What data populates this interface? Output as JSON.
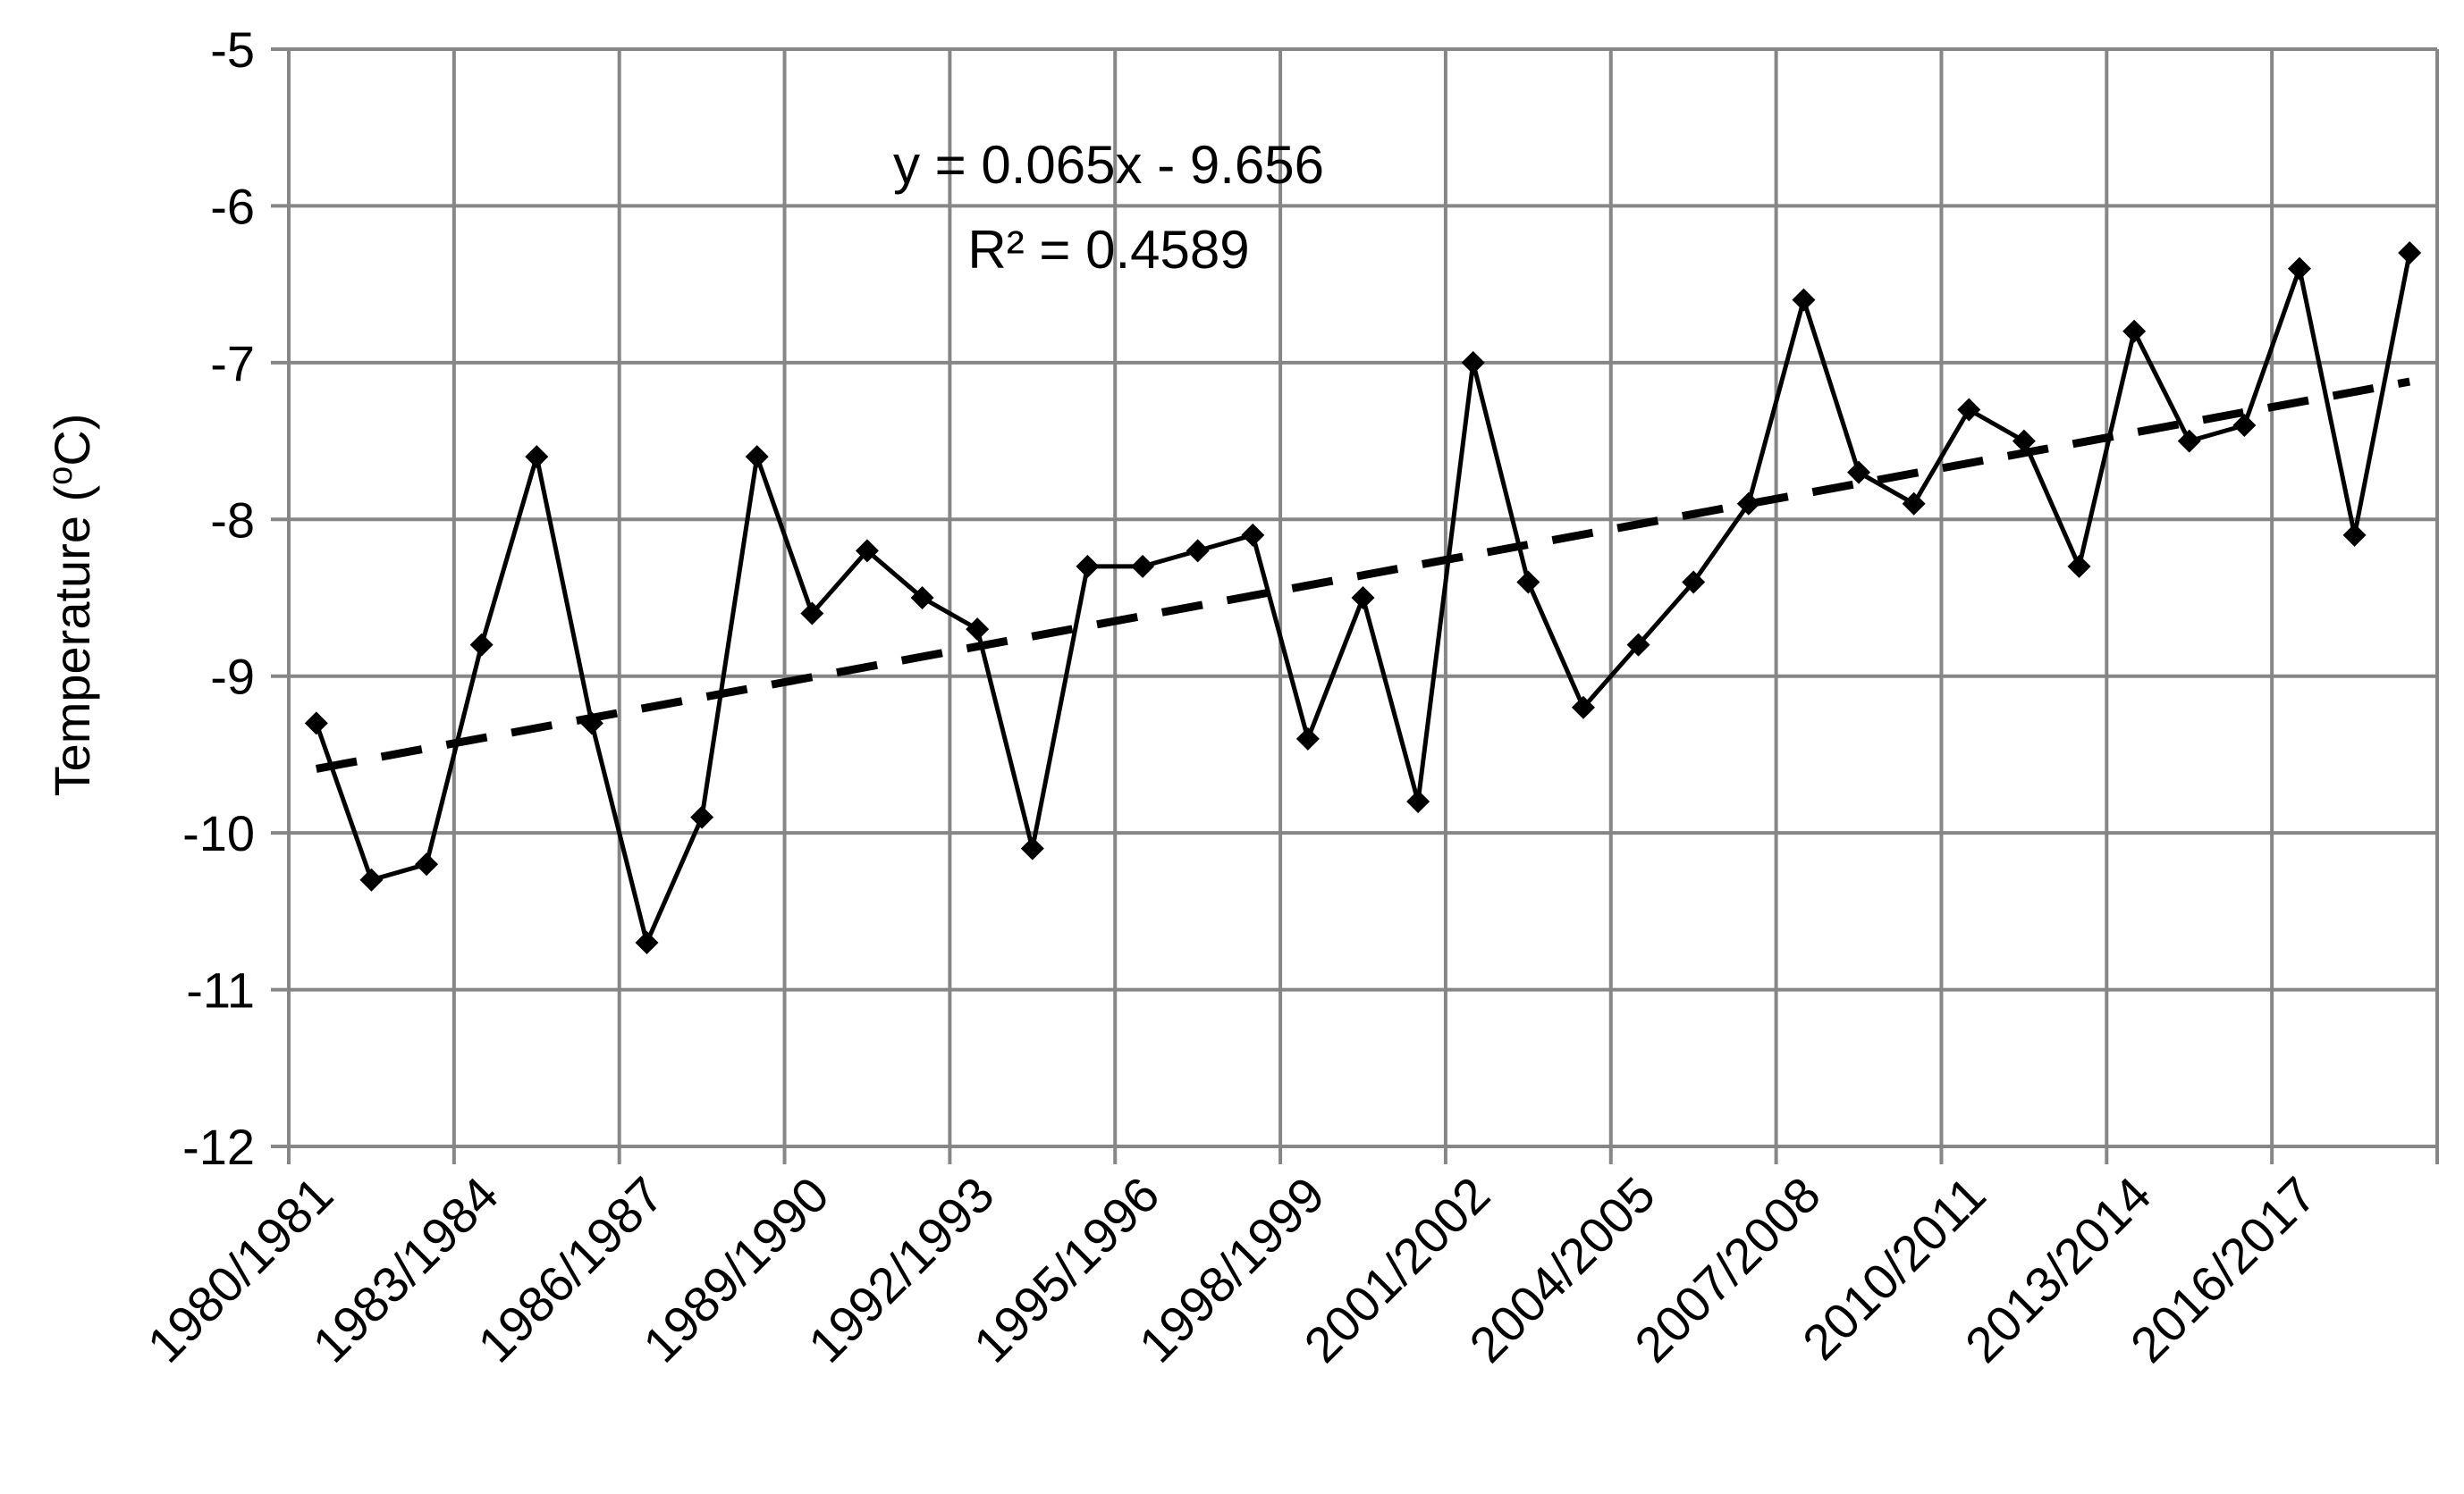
{
  "chart_data": {
    "type": "line",
    "title": "",
    "xlabel": "",
    "ylabel": "Temperature (",
    "ylabel_sup": "o",
    "ylabel_end": "C)",
    "ylim": [
      -12,
      -5
    ],
    "yticks": [
      "-12",
      "-11",
      "-10",
      "-9",
      "-8",
      "-7",
      "-6",
      "-5"
    ],
    "grid": true,
    "legend": "none",
    "x": [
      "1980/1981",
      "1981/1982",
      "1982/1983",
      "1983/1984",
      "1984/1985",
      "1985/1986",
      "1986/1987",
      "1987/1988",
      "1988/1989",
      "1989/1990",
      "1990/1991",
      "1991/1992",
      "1992/1993",
      "1993/1994",
      "1994/1995",
      "1995/1996",
      "1996/1997",
      "1997/1998",
      "1998/1999",
      "1999/2000",
      "2000/2001",
      "2001/2002",
      "2002/2003",
      "2003/2004",
      "2004/2005",
      "2005/2006",
      "2006/2007",
      "2007/2008",
      "2008/2009",
      "2009/2010",
      "2010/2011",
      "2011/2012",
      "2012/2013",
      "2013/2014",
      "2014/2015",
      "2015/2016",
      "2016/2017",
      "2017/2018",
      "2018/2019"
    ],
    "xtick_labels": [
      "1980/1981",
      "1983/1984",
      "1986/1987",
      "1989/1990",
      "1992/1993",
      "1995/1996",
      "1998/1999",
      "2001/2002",
      "2004/2005",
      "2007/2008",
      "2010/2011",
      "2013/2014",
      "2016/2017"
    ],
    "series": [
      {
        "values": [
          -9.3,
          -10.3,
          -10.2,
          -8.8,
          -7.6,
          -9.3,
          -10.7,
          -9.9,
          -7.6,
          -8.6,
          -8.2,
          -8.5,
          -8.7,
          -10.1,
          -8.3,
          -8.3,
          -8.2,
          -8.1,
          -9.4,
          -8.5,
          -9.8,
          -7.0,
          -8.4,
          -9.2,
          -8.8,
          -8.4,
          -7.9,
          -6.6,
          -7.7,
          -7.9,
          -7.3,
          -7.5,
          -8.3,
          -6.8,
          -7.5,
          -7.4,
          -6.4,
          -8.1,
          -6.3
        ],
        "color": "#000000",
        "marker": "diamond"
      }
    ],
    "trendline": {
      "type": "linear",
      "slope": 0.065,
      "intercept": -9.656,
      "equation": "y = 0.065x - 9.656",
      "r2_label": "R² = 0.4589",
      "style": "dashed",
      "color": "#000000"
    },
    "colors": {
      "grid": "#868686",
      "axis": "#868686",
      "line": "#000000"
    }
  }
}
